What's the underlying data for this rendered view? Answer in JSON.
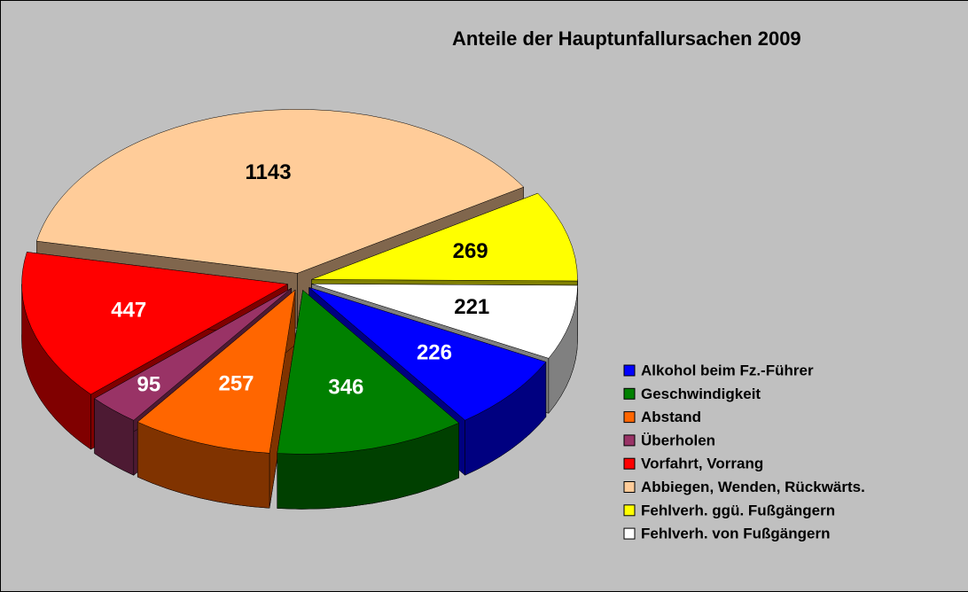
{
  "chart_data": {
    "type": "pie3d",
    "title": "Anteile der Hauptunfallursachen 2009",
    "categories": [
      "Alkohol beim Fz.-Führer",
      "Geschwindigkeit",
      "Abstand",
      "Überholen",
      "Vorfahrt, Vorrang",
      "Abbiegen, Wenden, Rückwärts.",
      "Fehlverh. ggü. Fußgängern",
      "Fehlverh. von Fußgängern"
    ],
    "values": [
      226,
      346,
      257,
      95,
      447,
      1143,
      269,
      221
    ],
    "colors": [
      "#0000ff",
      "#008000",
      "#ff6600",
      "#993366",
      "#ff0000",
      "#ffcc99",
      "#ffff00",
      "#ffffff"
    ],
    "legend": "right"
  }
}
